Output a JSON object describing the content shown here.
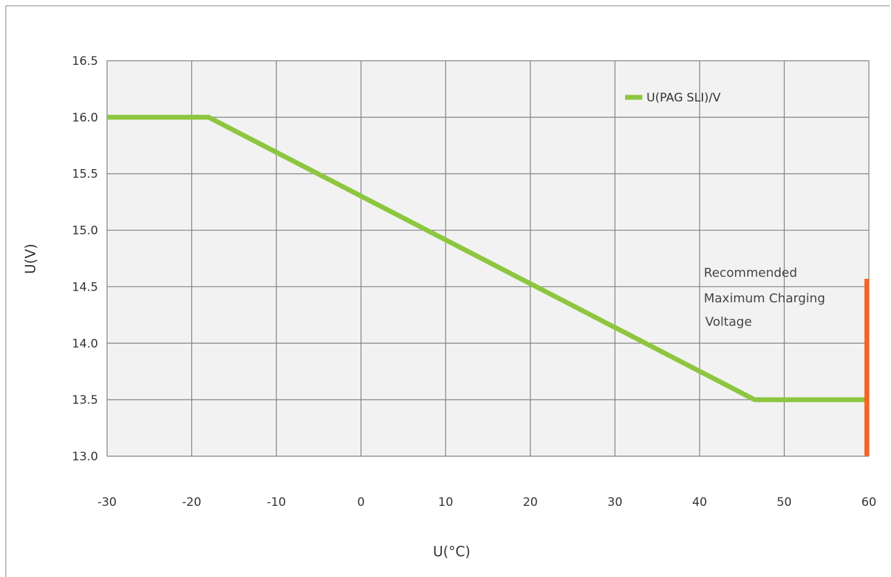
{
  "chart_data": {
    "type": "line",
    "title": "",
    "xlabel": "U(°C)",
    "ylabel": "U(V)",
    "xlim": [
      -30,
      60
    ],
    "ylim": [
      13.0,
      16.5
    ],
    "x_ticks": [
      -30,
      -20,
      -10,
      0,
      10,
      20,
      30,
      40,
      50,
      60
    ],
    "x_tick_labels": [
      "-30",
      "-20",
      "-10",
      "0",
      "10",
      "20",
      "30",
      "40",
      "50",
      "60"
    ],
    "y_ticks": [
      13.0,
      13.5,
      14.0,
      14.5,
      15.0,
      15.5,
      16.0,
      16.5
    ],
    "y_tick_labels": [
      "13.0",
      "13.5",
      "14.0",
      "14.5",
      "15.0",
      "15.5",
      "16.0",
      "16.5"
    ],
    "grid": true,
    "legend_position": "top-right",
    "series": [
      {
        "name": "U(PAG SLI)/V",
        "color": "#8dc63f",
        "x": [
          -30,
          -18,
          46.5,
          60
        ],
        "y": [
          16.0,
          16.0,
          13.5,
          13.5
        ]
      }
    ],
    "marker_line": {
      "x": 60,
      "y_from": 13.0,
      "y_to": 14.57,
      "color": "#f26522"
    },
    "annotation": {
      "lines": [
        "Recommended",
        "Maximum Charging",
        "Voltage"
      ]
    },
    "plot_background": "#f2f2f2",
    "grid_color": "#7f7f7f"
  }
}
